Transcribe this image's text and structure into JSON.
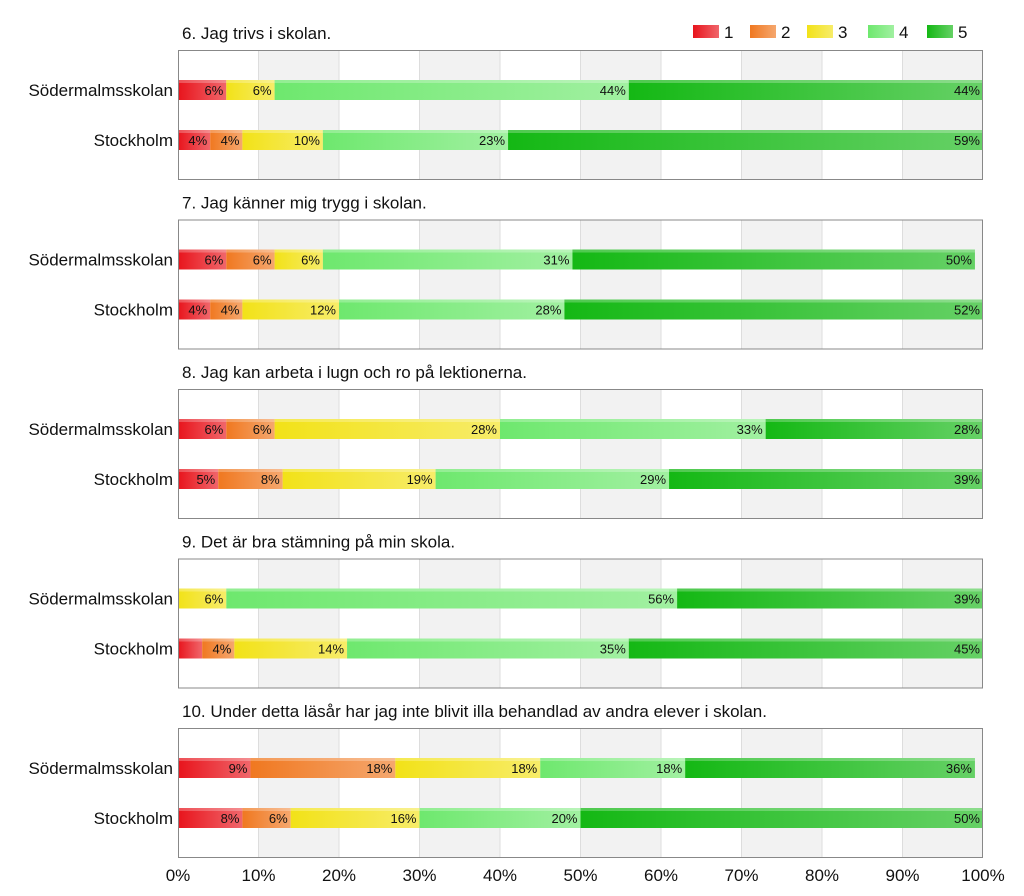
{
  "chart_data": {
    "type": "bar",
    "orientation": "horizontal",
    "stacked": true,
    "xlim": [
      0,
      100
    ],
    "x_ticks": [
      "0%",
      "10%",
      "20%",
      "30%",
      "40%",
      "50%",
      "60%",
      "70%",
      "80%",
      "90%",
      "100%"
    ],
    "legend": {
      "placement": "top-right",
      "entries": [
        "1",
        "2",
        "3",
        "4",
        "5"
      ]
    },
    "series_colors": [
      "#e8141c",
      "#f07820",
      "#f2e218",
      "#6ee86e",
      "#14b814"
    ],
    "panels": [
      {
        "title": "6. Jag trivs i skolan.",
        "categories": [
          "Södermalmsskolan",
          "Stockholm"
        ],
        "values": [
          [
            6,
            0,
            6,
            44,
            44
          ],
          [
            4,
            4,
            10,
            23,
            59
          ]
        ],
        "labels": [
          [
            "6%",
            "",
            "6%",
            "44%",
            "44%"
          ],
          [
            "4%",
            "4%",
            "10%",
            "23%",
            "59%"
          ]
        ]
      },
      {
        "title": "7. Jag känner mig trygg i skolan.",
        "categories": [
          "Södermalmsskolan",
          "Stockholm"
        ],
        "values": [
          [
            6,
            6,
            6,
            31,
            50
          ],
          [
            4,
            4,
            12,
            28,
            52
          ]
        ],
        "labels": [
          [
            "6%",
            "6%",
            "6%",
            "31%",
            "50%"
          ],
          [
            "4%",
            "4%",
            "12%",
            "28%",
            "52%"
          ]
        ]
      },
      {
        "title": "8. Jag kan arbeta i lugn och ro på lektionerna.",
        "categories": [
          "Södermalmsskolan",
          "Stockholm"
        ],
        "values": [
          [
            6,
            6,
            28,
            33,
            28
          ],
          [
            5,
            8,
            19,
            29,
            39
          ]
        ],
        "labels": [
          [
            "6%",
            "6%",
            "28%",
            "33%",
            "28%"
          ],
          [
            "5%",
            "8%",
            "19%",
            "29%",
            "39%"
          ]
        ]
      },
      {
        "title": "9. Det är bra stämning på min skola.",
        "categories": [
          "Södermalmsskolan",
          "Stockholm"
        ],
        "values": [
          [
            0,
            0,
            6,
            56,
            39
          ],
          [
            3,
            4,
            14,
            35,
            45
          ]
        ],
        "labels": [
          [
            "",
            "",
            "6%",
            "56%",
            "39%"
          ],
          [
            "",
            "4%",
            "14%",
            "35%",
            "45%"
          ]
        ]
      },
      {
        "title": "10. Under detta läsår har jag inte blivit illa behandlad av andra elever i skolan.",
        "categories": [
          "Södermalmsskolan",
          "Stockholm"
        ],
        "values": [
          [
            9,
            18,
            18,
            18,
            36
          ],
          [
            8,
            6,
            16,
            20,
            50
          ]
        ],
        "labels": [
          [
            "9%",
            "18%",
            "18%",
            "18%",
            "36%"
          ],
          [
            "8%",
            "6%",
            "16%",
            "20%",
            "50%"
          ]
        ]
      }
    ]
  }
}
